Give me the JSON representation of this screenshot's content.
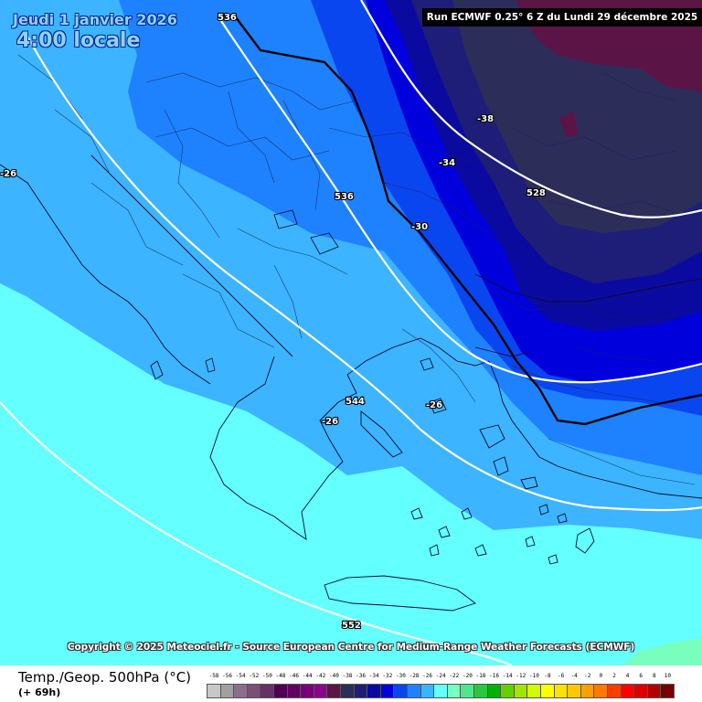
{
  "header": {
    "date": "Jeudi 1 janvier 2026",
    "time": "4:00 locale",
    "run": "Run ECMWF 0.25° 6 Z du Lundi 29 décembre 2025"
  },
  "copyright": "Copyright © 2025 Meteociel.fr - Source European Centre for Medium-Range Weather Forecasts (ECMWF)",
  "footer": {
    "variable": "Temp./Geop. 500hPa (°C)",
    "lead": "(+ 69h)"
  },
  "legend": [
    {
      "label": "-58",
      "color": "#c8c8c8"
    },
    {
      "label": "-56",
      "color": "#a0a0a0"
    },
    {
      "label": "-54",
      "color": "#8c6e8c"
    },
    {
      "label": "-52",
      "color": "#785078"
    },
    {
      "label": "-50",
      "color": "#643264"
    },
    {
      "label": "-48",
      "color": "#500050"
    },
    {
      "label": "-46",
      "color": "#640064"
    },
    {
      "label": "-44",
      "color": "#780078"
    },
    {
      "label": "-42",
      "color": "#8c008c"
    },
    {
      "label": "-40",
      "color": "#5a1446"
    },
    {
      "label": "-38",
      "color": "#2d2d5a"
    },
    {
      "label": "-36",
      "color": "#1e1e78"
    },
    {
      "label": "-34",
      "color": "#0a0aa0"
    },
    {
      "label": "-32",
      "color": "#0000dc"
    },
    {
      "label": "-30",
      "color": "#0a46f0"
    },
    {
      "label": "-28",
      "color": "#1e82ff"
    },
    {
      "label": "-26",
      "color": "#3cb4ff"
    },
    {
      "label": "-24",
      "color": "#64ffff"
    },
    {
      "label": "-22",
      "color": "#78ffbe"
    },
    {
      "label": "-20",
      "color": "#50e68c"
    },
    {
      "label": "-18",
      "color": "#28c83c"
    },
    {
      "label": "-16",
      "color": "#00b400"
    },
    {
      "label": "-14",
      "color": "#64d200"
    },
    {
      "label": "-12",
      "color": "#a0e600"
    },
    {
      "label": "-10",
      "color": "#d2fa00"
    },
    {
      "label": "-8",
      "color": "#ffff00"
    },
    {
      "label": "-6",
      "color": "#ffe100"
    },
    {
      "label": "-4",
      "color": "#ffc800"
    },
    {
      "label": "-2",
      "color": "#ffa000"
    },
    {
      "label": "0",
      "color": "#ff7800"
    },
    {
      "label": "2",
      "color": "#ff3c00"
    },
    {
      "label": "4",
      "color": "#ff0000"
    },
    {
      "label": "6",
      "color": "#dc0000"
    },
    {
      "label": "8",
      "color": "#b40000"
    },
    {
      "label": "10",
      "color": "#780000"
    }
  ],
  "contour_labels": [
    {
      "text": "536",
      "name": "geopotential-label-536-north"
    },
    {
      "text": "-38",
      "name": "temperature-label-minus38"
    },
    {
      "text": "-34",
      "name": "temperature-label-minus34"
    },
    {
      "text": "528",
      "name": "geopotential-label-528"
    },
    {
      "text": "536",
      "name": "geopotential-label-536-center"
    },
    {
      "text": "-30",
      "name": "temperature-label-minus30"
    },
    {
      "text": "-26",
      "name": "temperature-label-minus26-west"
    },
    {
      "text": "544",
      "name": "geopotential-label-544"
    },
    {
      "text": "-26",
      "name": "temperature-label-minus26-aegean"
    },
    {
      "text": "-26",
      "name": "temperature-label-minus26-greece"
    },
    {
      "text": "552",
      "name": "geopotential-label-552"
    }
  ]
}
